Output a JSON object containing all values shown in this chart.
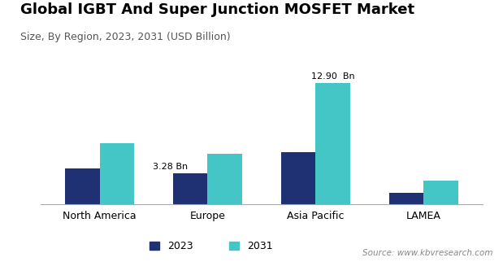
{
  "title": "Global IGBT And Super Junction MOSFET Market",
  "subtitle": "Size, By Region, 2023, 2031 (USD Billion)",
  "source": "Source: www.kbvresearch.com",
  "categories": [
    "North America",
    "Europe",
    "Asia Pacific",
    "LAMEA"
  ],
  "values_2023": [
    3.8,
    3.28,
    5.5,
    1.2
  ],
  "values_2031": [
    6.5,
    5.4,
    12.9,
    2.5
  ],
  "color_2023": "#1f3172",
  "color_2031": "#45c6c6",
  "bar_width": 0.32,
  "ylim": [
    0,
    15.0
  ],
  "legend_labels": [
    "2023",
    "2031"
  ],
  "background_color": "#ffffff",
  "title_fontsize": 13,
  "subtitle_fontsize": 9,
  "axis_label_fontsize": 9,
  "legend_fontsize": 9,
  "source_fontsize": 7.5,
  "annotation_europe": "3.28 Bn",
  "annotation_asia": "12.90  Bn"
}
